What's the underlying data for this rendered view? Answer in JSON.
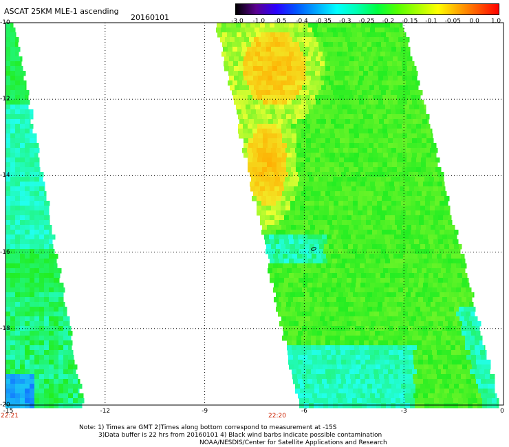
{
  "header": {
    "title": "ASCAT 25KM MLE-1 ascending",
    "date": "20160101"
  },
  "colorbar": {
    "ticks": [
      "-3.0",
      "-1.0",
      "-0.5",
      "-0.4",
      "-0.35",
      "-0.3",
      "-0.25",
      "-0.2",
      "-0.15",
      "-0.1",
      "-0.05",
      "0.0",
      "1.0"
    ],
    "colors": [
      "#000000",
      "#5a0090",
      "#2a00ff",
      "#0055ff",
      "#00a8ff",
      "#00ffff",
      "#00ffb0",
      "#00ff40",
      "#55ff00",
      "#a8ff00",
      "#ffff00",
      "#ffa800",
      "#ff5500",
      "#ff0000"
    ]
  },
  "map": {
    "y_labels": [
      "-10",
      "-12",
      "-14",
      "-16",
      "-18",
      "-20"
    ],
    "x_labels": [
      "-15",
      "-12",
      "-9",
      "-6",
      "-3",
      "0"
    ],
    "times": [
      "22:21",
      "22:20"
    ],
    "lat_range": [
      -20,
      -10
    ],
    "lon_range": [
      -15,
      0
    ],
    "colors": {
      "grid": "#000000",
      "swath_green": "#22ee22",
      "swath_cyan": "#22ffee",
      "swath_yellow": "#eeff33",
      "swath_orange": "#ffaa00",
      "swath_blue": "#1177ff"
    }
  },
  "footer": {
    "line1": "Note: 1) Times are GMT 2)Times along bottom correspond to measurement at -15S",
    "line2": "3)Data buffer is 22 hrs from 20160101 4) Black wind barbs indicate possible contamination",
    "line3": "NOAA/NESDIS/Center for Satellite Applications and Research"
  }
}
